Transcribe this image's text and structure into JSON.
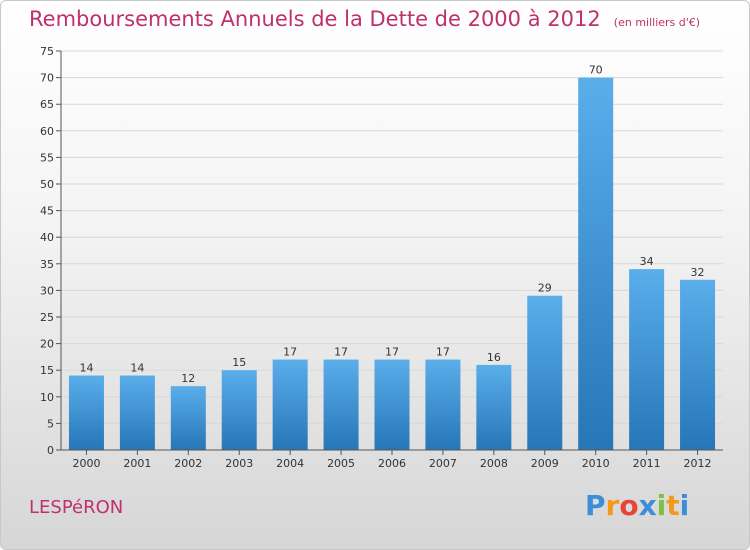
{
  "header": {
    "title": "Remboursements Annuels de la Dette de 2000 à 2012",
    "unit": "(en milliers d'€)"
  },
  "commune": "LESPéRON",
  "logo": {
    "text": "Proxiti",
    "letters": [
      "P",
      "r",
      "o",
      "x",
      "i",
      "t",
      "i"
    ],
    "colors": [
      "#3a8fd6",
      "#f39a1e",
      "#e8443a",
      "#3a8fd6",
      "#7cc242",
      "#f39a1e",
      "#3a8fd6"
    ]
  },
  "colors": {
    "accent": "#c0306b",
    "bar_top": "#5aaeea",
    "bar_bottom": "#2676b8",
    "grid": "#d8d8d8"
  },
  "chart_data": {
    "type": "bar",
    "title": "Remboursements Annuels de la Dette de 2000 à 2012",
    "subtitle": "(en milliers d'€)",
    "xlabel": "",
    "ylabel": "",
    "categories": [
      "2000",
      "2001",
      "2002",
      "2003",
      "2004",
      "2005",
      "2006",
      "2007",
      "2008",
      "2009",
      "2010",
      "2011",
      "2012"
    ],
    "values": [
      14,
      14,
      12,
      15,
      17,
      17,
      17,
      17,
      16,
      29,
      70,
      34,
      32
    ],
    "ylim": [
      0,
      75
    ],
    "yticks": [
      0,
      5,
      10,
      15,
      20,
      25,
      30,
      35,
      40,
      45,
      50,
      55,
      60,
      65,
      70,
      75
    ],
    "grid": true,
    "legend": "none"
  }
}
